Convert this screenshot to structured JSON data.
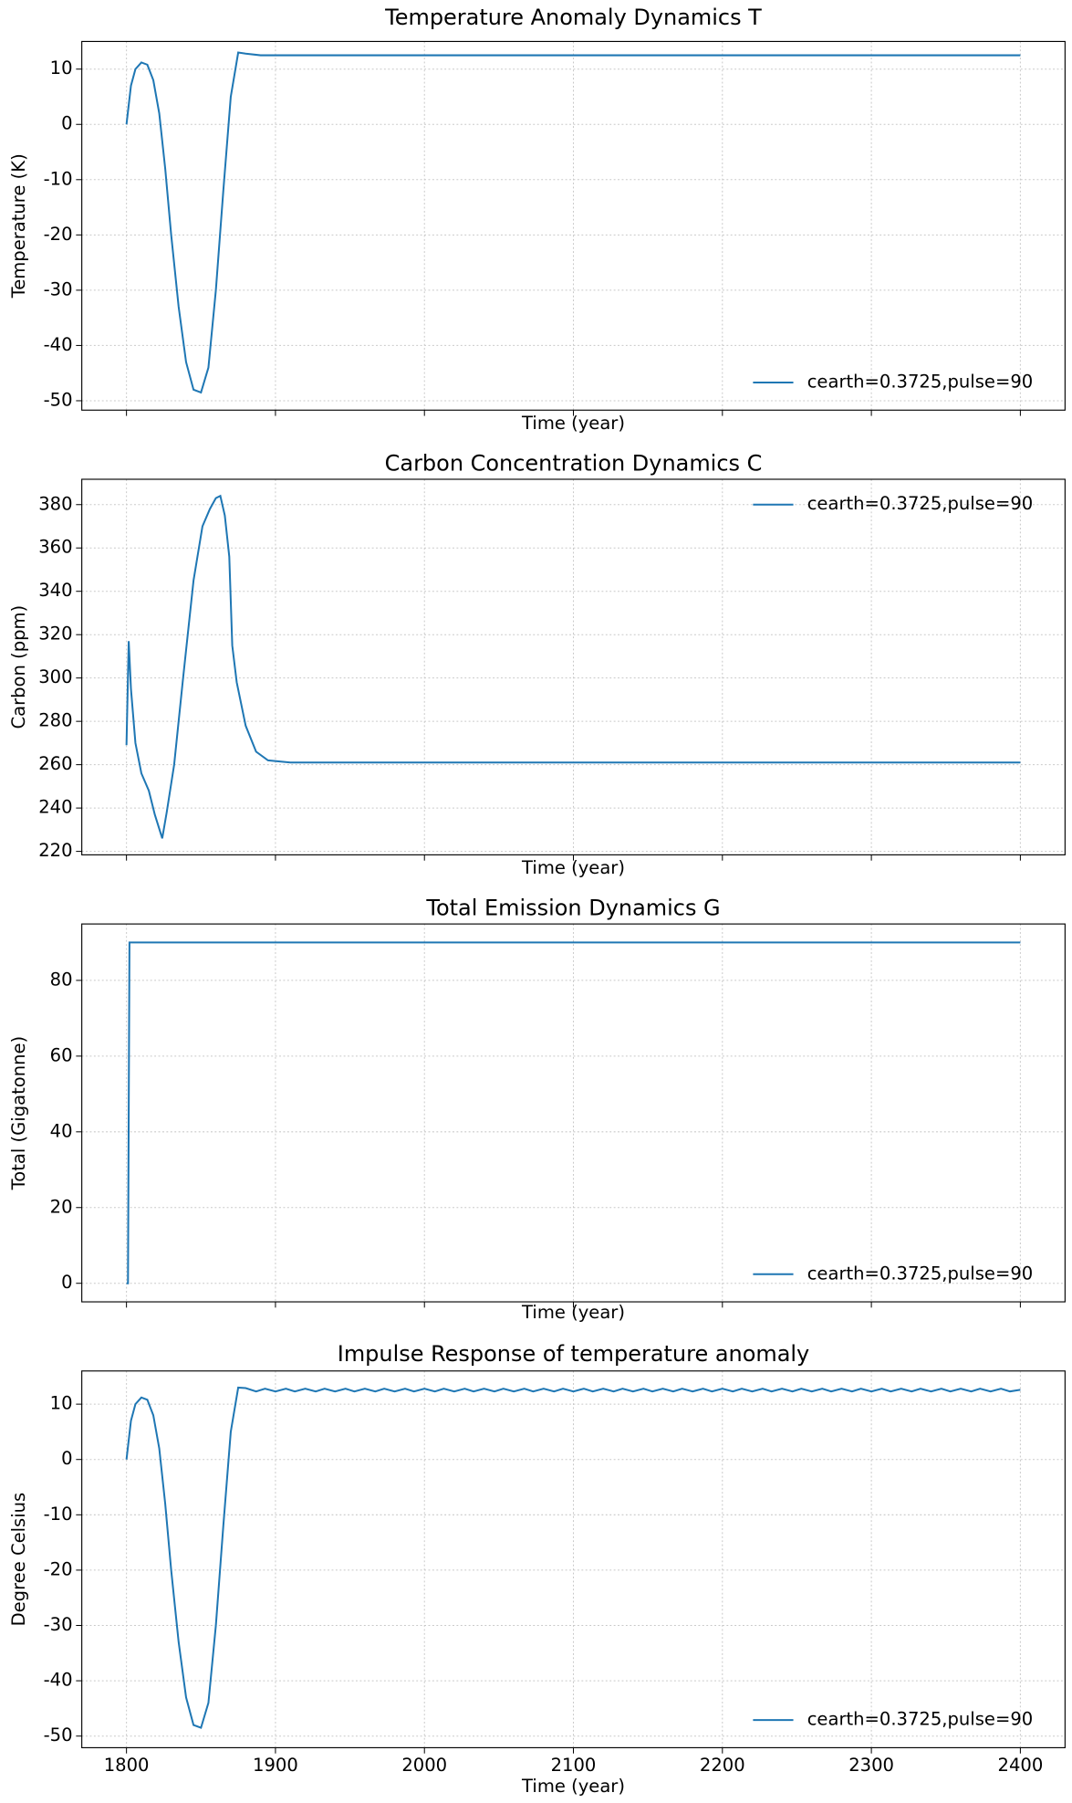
{
  "chart_data": [
    {
      "type": "line",
      "title": "Temperature Anomaly Dynamics T",
      "xlabel": "Time (year)",
      "ylabel": "Temperature (K)",
      "x": [
        1800,
        1803,
        1806,
        1810,
        1814,
        1818,
        1822,
        1826,
        1830,
        1835,
        1840,
        1845,
        1850,
        1855,
        1860,
        1865,
        1870,
        1875,
        1880,
        1890,
        1900,
        2000,
        2400
      ],
      "series": [
        {
          "name": "cearth=0.3725,pulse=90",
          "color": "#1f77b4",
          "values": [
            0,
            7,
            10,
            11.2,
            10.8,
            8,
            2,
            -8,
            -20,
            -33,
            -43,
            -48,
            -48.5,
            -44,
            -30,
            -12,
            5,
            13,
            12.8,
            12.5,
            12.5,
            12.5,
            12.5
          ]
        }
      ],
      "xlim": [
        1770,
        2430
      ],
      "xticks": [
        1800,
        1900,
        2000,
        2100,
        2200,
        2300,
        2400
      ],
      "xtick_labels": false,
      "ylim": [
        -51.7,
        15
      ],
      "yticks": [
        -50,
        -40,
        -30,
        -20,
        -10,
        0,
        10
      ],
      "grid": true,
      "legend": "lower right"
    },
    {
      "type": "line",
      "title": "Carbon Concentration Dynamics C",
      "xlabel": "Time (year)",
      "ylabel": "Carbon (ppm)",
      "x": [
        1800,
        1801.5,
        1803,
        1806,
        1810,
        1815,
        1819,
        1824,
        1827,
        1832,
        1838,
        1845,
        1851,
        1856,
        1860,
        1863,
        1866,
        1869,
        1871,
        1874,
        1880,
        1887,
        1895,
        1910,
        2400
      ],
      "series": [
        {
          "name": "cearth=0.3725,pulse=90",
          "color": "#1f77b4",
          "values": [
            269,
            317,
            295,
            270,
            256,
            248,
            237,
            226,
            238,
            260,
            300,
            345,
            370,
            378,
            383,
            384,
            375,
            356,
            315,
            298,
            278,
            266,
            262,
            261,
            261
          ]
        }
      ],
      "xlim": [
        1770,
        2430
      ],
      "xticks": [
        1800,
        1900,
        2000,
        2100,
        2200,
        2300,
        2400
      ],
      "xtick_labels": false,
      "ylim": [
        218.4,
        391.7
      ],
      "yticks": [
        220,
        240,
        260,
        280,
        300,
        320,
        340,
        360,
        380
      ],
      "grid": true,
      "legend": "upper right"
    },
    {
      "type": "line",
      "title": "Total Emission Dynamics G",
      "xlabel": "Time (year)",
      "ylabel": "Total (Gigatonne)",
      "x": [
        1800,
        1801,
        1802,
        2400
      ],
      "series": [
        {
          "name": "cearth=0.3725,pulse=90",
          "color": "#1f77b4",
          "values": [
            0,
            0,
            90,
            90
          ]
        }
      ],
      "xlim": [
        1770,
        2430
      ],
      "xticks": [
        1800,
        1900,
        2000,
        2100,
        2200,
        2300,
        2400
      ],
      "xtick_labels": false,
      "ylim": [
        -4.9,
        94.9
      ],
      "yticks": [
        0,
        20,
        40,
        60,
        80
      ],
      "grid": true,
      "legend": "lower right"
    },
    {
      "type": "line",
      "title": "Impulse Response of temperature anomaly",
      "xlabel": "Time (year)",
      "ylabel": "Degree Celsius",
      "x": [
        1800,
        1803,
        1806,
        1810,
        1814,
        1818,
        1822,
        1826,
        1830,
        1835,
        1840,
        1845,
        1850,
        1855,
        1860,
        1865,
        1870,
        1875,
        1880,
        1887,
        1893,
        1900,
        1907,
        1913,
        1920,
        1927,
        1933,
        1940,
        1947,
        1953,
        1960,
        1967,
        1973,
        1980,
        1987,
        1993,
        2000,
        2007,
        2013,
        2020,
        2027,
        2033,
        2040,
        2047,
        2053,
        2060,
        2067,
        2073,
        2080,
        2087,
        2093,
        2100,
        2107,
        2113,
        2120,
        2127,
        2133,
        2140,
        2147,
        2153,
        2160,
        2167,
        2173,
        2180,
        2187,
        2193,
        2200,
        2207,
        2213,
        2220,
        2227,
        2233,
        2240,
        2247,
        2253,
        2260,
        2267,
        2273,
        2280,
        2287,
        2293,
        2300,
        2307,
        2313,
        2320,
        2327,
        2333,
        2340,
        2347,
        2353,
        2360,
        2367,
        2373,
        2380,
        2387,
        2393,
        2400
      ],
      "series": [
        {
          "name": "cearth=0.3725,pulse=90",
          "color": "#1f77b4",
          "values": [
            0,
            7,
            10,
            11.2,
            10.8,
            8,
            2,
            -8,
            -20,
            -33,
            -43,
            -48,
            -48.5,
            -44,
            -30,
            -12,
            5,
            13,
            12.9,
            12.3,
            12.8,
            12.3,
            12.8,
            12.3,
            12.8,
            12.3,
            12.8,
            12.3,
            12.8,
            12.3,
            12.8,
            12.3,
            12.8,
            12.3,
            12.8,
            12.3,
            12.8,
            12.3,
            12.8,
            12.3,
            12.8,
            12.3,
            12.8,
            12.3,
            12.8,
            12.3,
            12.8,
            12.3,
            12.8,
            12.3,
            12.8,
            12.3,
            12.8,
            12.3,
            12.8,
            12.3,
            12.8,
            12.3,
            12.8,
            12.3,
            12.8,
            12.3,
            12.8,
            12.3,
            12.8,
            12.3,
            12.8,
            12.3,
            12.8,
            12.3,
            12.8,
            12.3,
            12.8,
            12.3,
            12.8,
            12.3,
            12.8,
            12.3,
            12.8,
            12.3,
            12.8,
            12.3,
            12.8,
            12.3,
            12.8,
            12.3,
            12.8,
            12.3,
            12.8,
            12.3,
            12.8,
            12.3,
            12.8,
            12.3,
            12.8,
            12.3,
            12.6
          ]
        }
      ],
      "xlim": [
        1770,
        2430
      ],
      "xticks": [
        1800,
        1900,
        2000,
        2100,
        2200,
        2300,
        2400
      ],
      "xtick_labels": true,
      "ylim": [
        -52.1,
        16
      ],
      "yticks": [
        -50,
        -40,
        -30,
        -20,
        -10,
        0,
        10
      ],
      "grid": true,
      "legend": "lower right"
    }
  ]
}
